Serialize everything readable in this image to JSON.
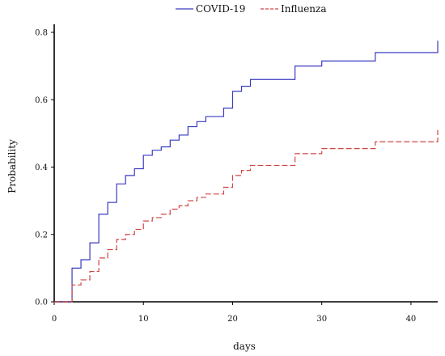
{
  "chart_data": {
    "type": "line",
    "xlabel": "days",
    "ylabel": "Probability",
    "xlim": [
      0,
      43
    ],
    "ylim": [
      0,
      0.8
    ],
    "x_ticks": [
      0,
      10,
      20,
      30,
      40
    ],
    "y_ticks": [
      0.0,
      0.2,
      0.4,
      0.6,
      0.8
    ],
    "x_tick_labels": [
      "0",
      "10",
      "20",
      "30",
      "40"
    ],
    "y_tick_labels": [
      "0.0",
      "0.2",
      "0.4",
      "0.6",
      "0.8"
    ],
    "legend_position": "top-center",
    "grid": false,
    "step": true,
    "series": [
      {
        "name": "COVID-19",
        "color": "#3a3ac0",
        "line_style": "solid",
        "x": [
          0,
          2,
          3,
          4,
          5,
          6,
          7,
          8,
          9,
          10,
          11,
          12,
          13,
          14,
          15,
          16,
          17,
          19,
          20,
          21,
          22,
          27,
          30,
          36,
          43
        ],
        "y": [
          0.0,
          0.1,
          0.125,
          0.175,
          0.26,
          0.295,
          0.35,
          0.375,
          0.395,
          0.435,
          0.45,
          0.46,
          0.48,
          0.495,
          0.52,
          0.535,
          0.55,
          0.575,
          0.625,
          0.64,
          0.66,
          0.7,
          0.715,
          0.74,
          0.775
        ]
      },
      {
        "name": "Influenza",
        "color": "#d04545",
        "line_style": "dashed",
        "x": [
          0,
          2,
          3,
          4,
          5,
          6,
          7,
          8,
          9,
          10,
          11,
          12,
          13,
          14,
          15,
          16,
          17,
          19,
          20,
          21,
          22,
          27,
          30,
          36,
          43
        ],
        "y": [
          0.0,
          0.05,
          0.065,
          0.09,
          0.13,
          0.155,
          0.185,
          0.2,
          0.215,
          0.24,
          0.25,
          0.26,
          0.275,
          0.285,
          0.3,
          0.31,
          0.32,
          0.34,
          0.375,
          0.39,
          0.405,
          0.44,
          0.455,
          0.475,
          0.51
        ]
      }
    ]
  }
}
